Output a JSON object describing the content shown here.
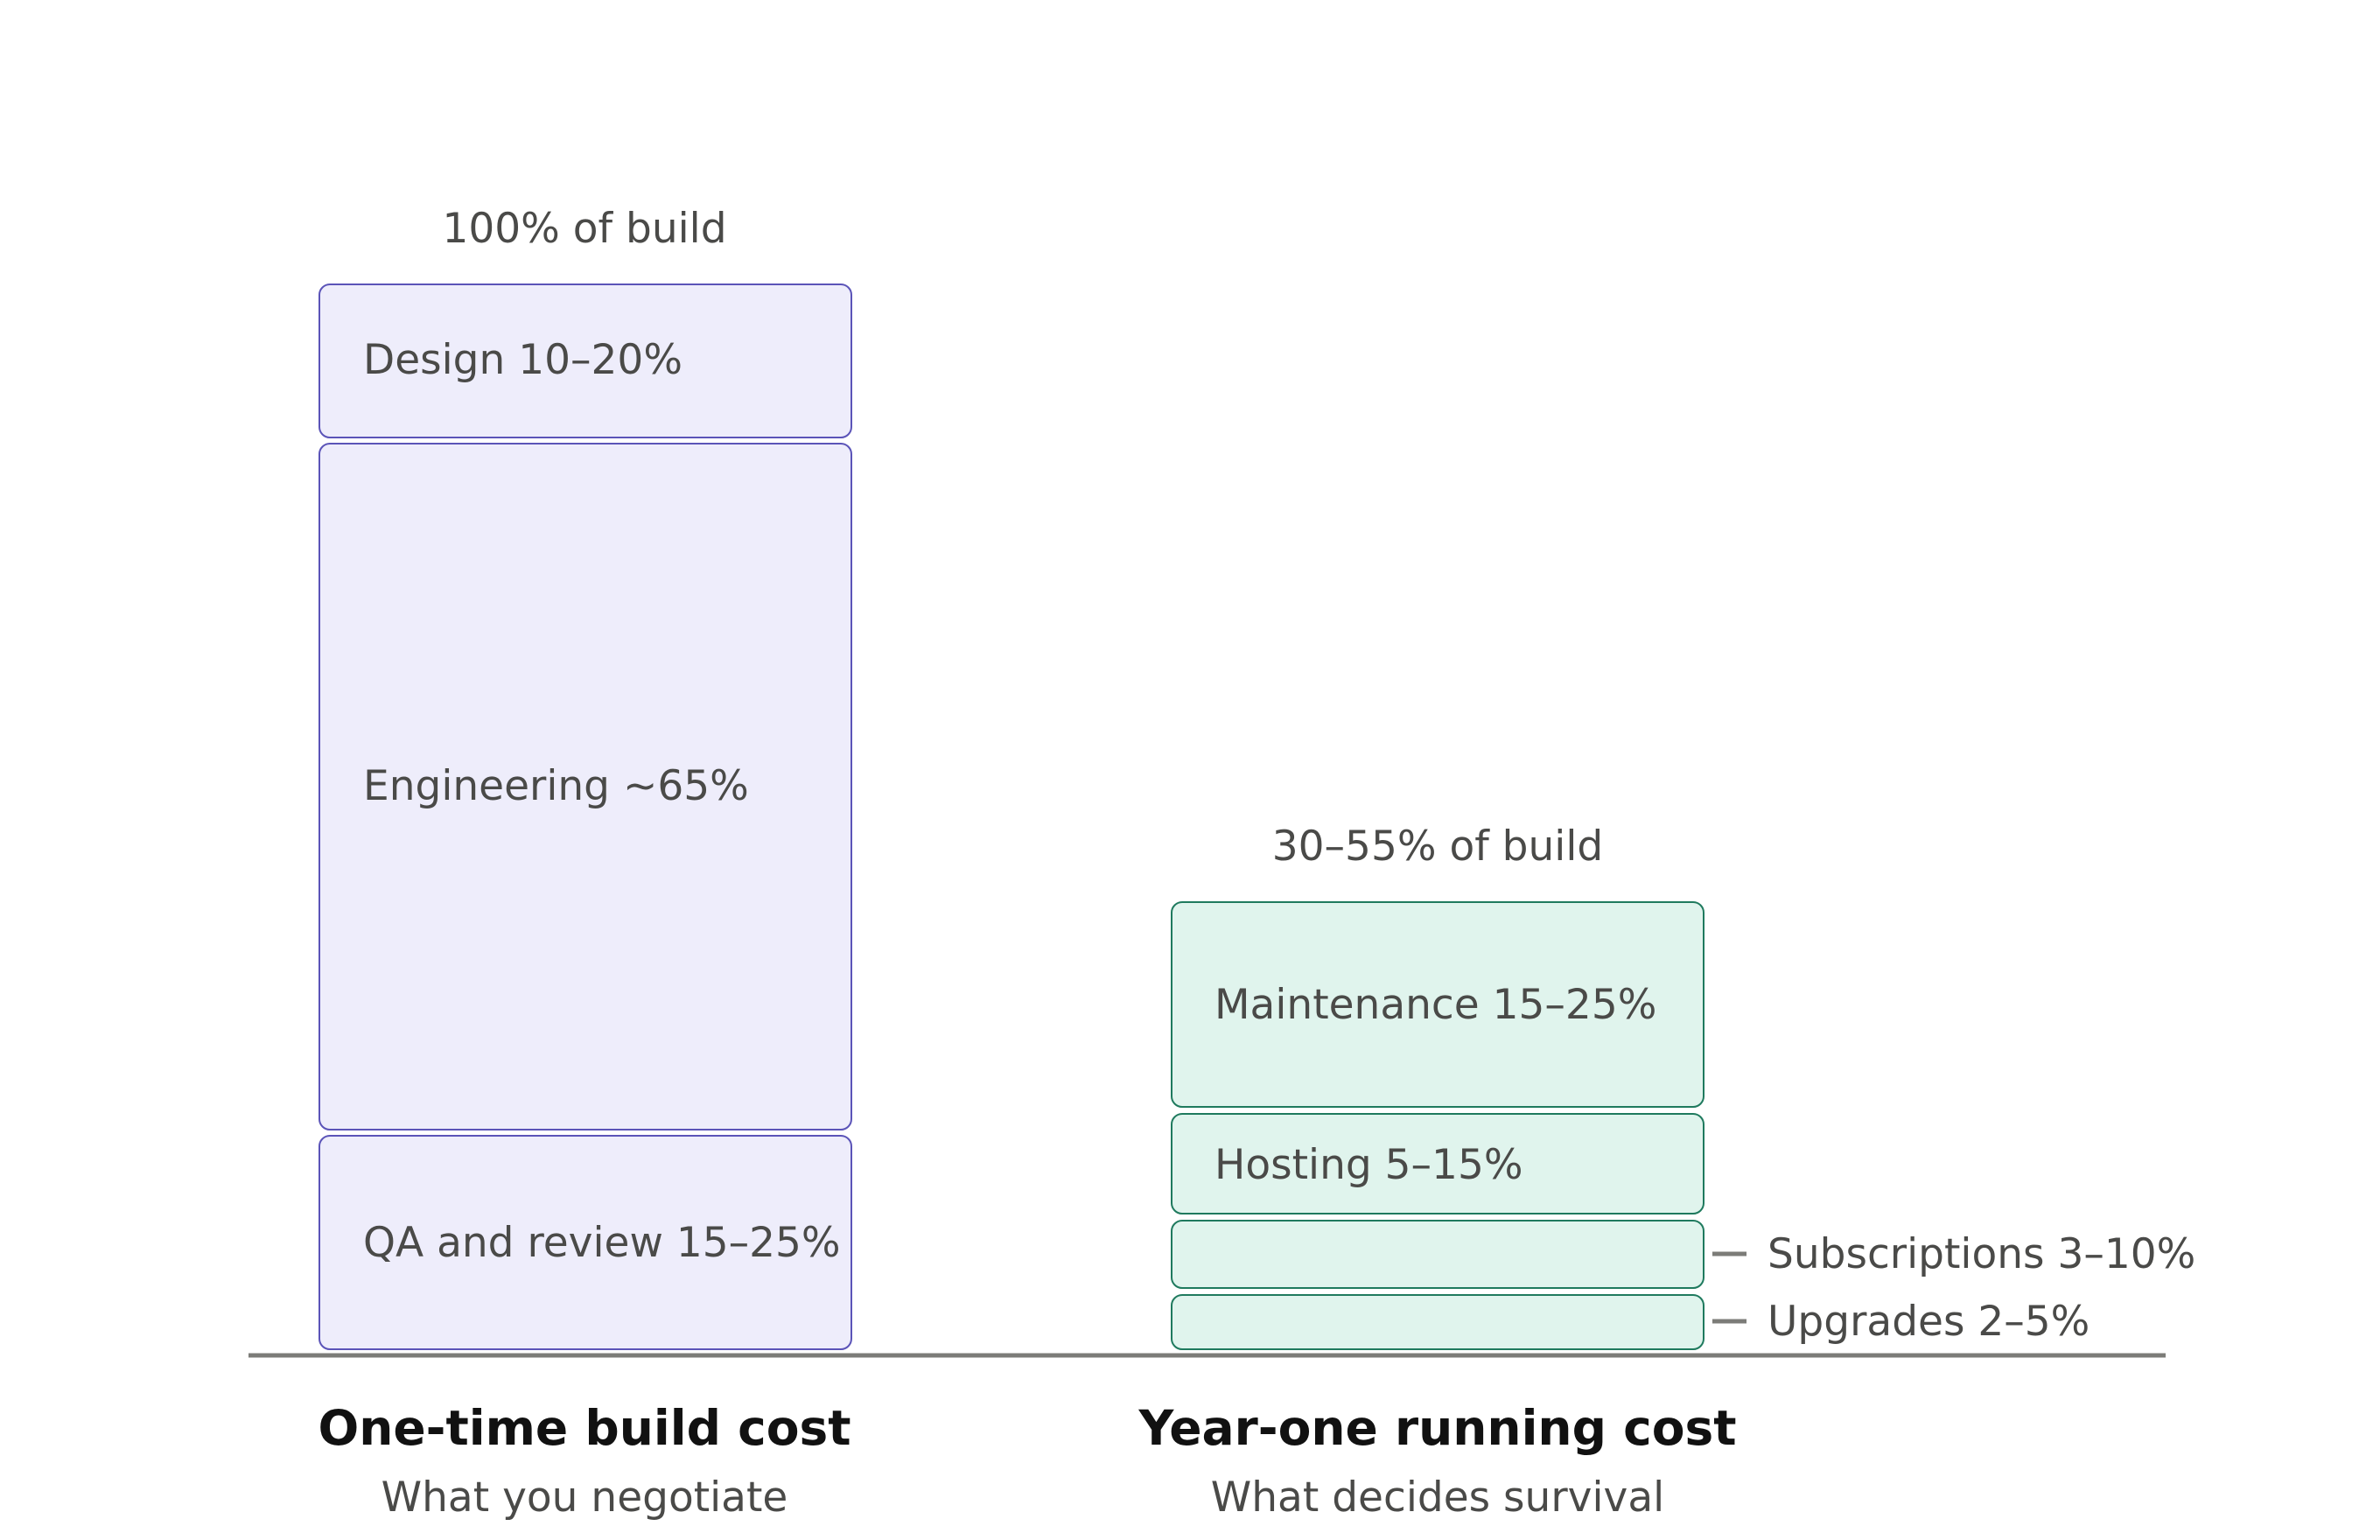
{
  "diagram": {
    "columns": [
      {
        "title": "One-time build cost",
        "subtitle": "What you negotiate",
        "total_label": "100% of build",
        "segments": [
          {
            "label": "Design 10–20%"
          },
          {
            "label": "Engineering ~65%"
          },
          {
            "label": "QA and review 15–25%"
          }
        ]
      },
      {
        "title": "Year-one running cost",
        "subtitle": "What decides survival",
        "total_label": "30–55% of build",
        "segments": [
          {
            "label": "Maintenance 15–25%"
          },
          {
            "label": "Hosting 5–15%"
          },
          {
            "label": "Subscriptions 3–10%"
          },
          {
            "label": "Upgrades 2–5%"
          }
        ]
      }
    ],
    "colors": {
      "build_fill": "#eeedfb",
      "build_stroke": "#5b54b8",
      "run_fill": "#e0f4ed",
      "run_stroke": "#1f7a5e",
      "axis": "#7c7c78",
      "text": "#4a4a48"
    }
  }
}
